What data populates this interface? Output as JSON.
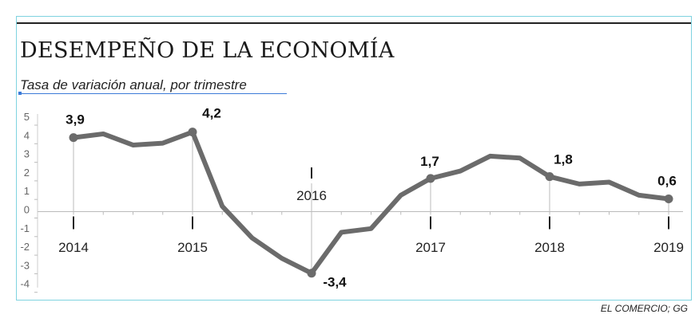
{
  "title": "DESEMPEÑO DE LA ECONOMÍA",
  "subtitle": "Tasa de variación anual, por trimestre",
  "source": "EL COMERCIO; GG",
  "colors": {
    "line": "#6b6b6b",
    "frame": "#7fd3e0",
    "grid": "#cccccc"
  },
  "chart_data": {
    "type": "line",
    "title": "DESEMPEÑO DE LA ECONOMÍA",
    "subtitle": "Tasa de variación anual, por trimestre",
    "xlabel": "",
    "ylabel": "",
    "ylim": [
      -4,
      5
    ],
    "yticks": [
      "5",
      "4",
      "3",
      "2",
      "1",
      "0",
      "-1",
      "-2",
      "-3",
      "-4"
    ],
    "year_labels": [
      "2014",
      "2015",
      "2016",
      "2017",
      "2018",
      "2019"
    ],
    "series": [
      {
        "values": [
          3.9,
          4.1,
          3.5,
          3.6,
          4.2,
          0.2,
          -1.5,
          -2.6,
          -3.4,
          -1.2,
          -1.0,
          0.8,
          1.7,
          2.1,
          2.9,
          2.8,
          1.8,
          1.4,
          1.5,
          0.8,
          0.6
        ]
      }
    ],
    "highlighted": [
      {
        "index": 0,
        "label": "3,9"
      },
      {
        "index": 4,
        "label": "4,2"
      },
      {
        "index": 8,
        "label": "-3,4"
      },
      {
        "index": 12,
        "label": "1,7"
      },
      {
        "index": 16,
        "label": "1,8"
      },
      {
        "index": 20,
        "label": "0,6"
      }
    ],
    "grid": false
  }
}
